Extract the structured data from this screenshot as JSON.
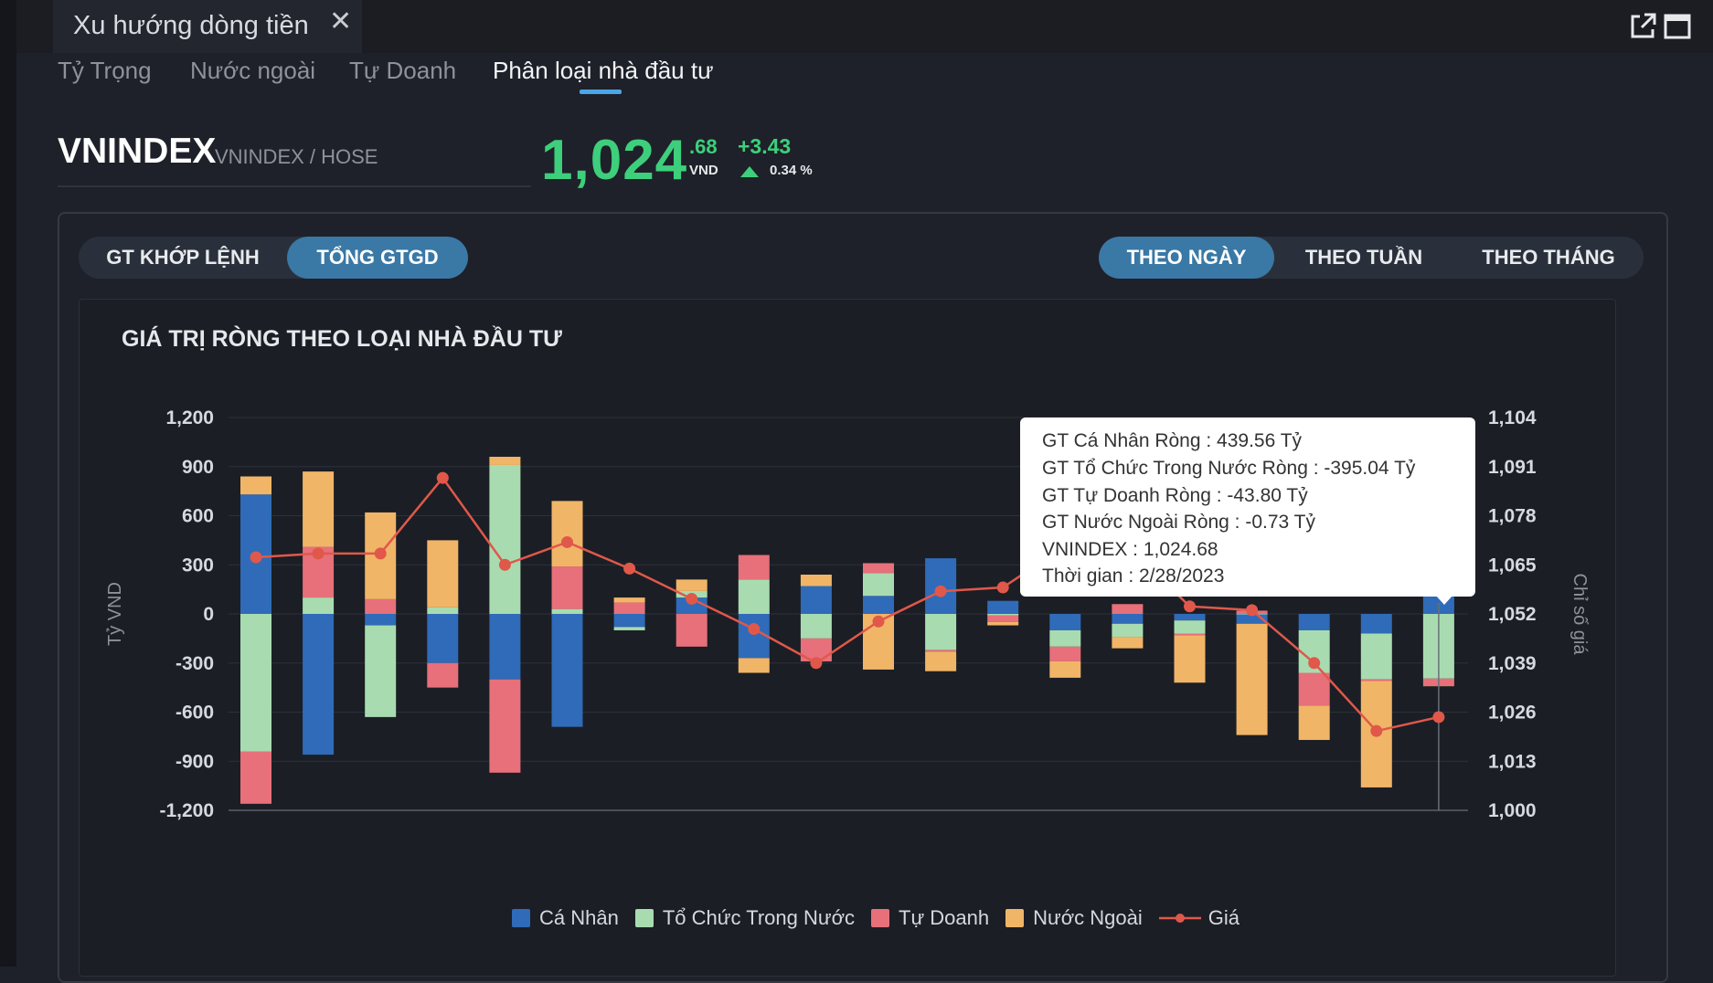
{
  "window": {
    "tab_title": "Xu hướng dòng tiền",
    "close_glyph": "✕",
    "icons": [
      "external-link-icon",
      "maximize-icon"
    ]
  },
  "nav": {
    "tabs": [
      "Tỷ Trọng",
      "Nước ngoài",
      "Tự Doanh",
      "Phân loại nhà đầu tư"
    ],
    "active": "Phân loại nhà đầu tư"
  },
  "symbol": {
    "code": "VNINDEX",
    "exchange": "VNINDEX / HOSE",
    "price_int": "1,024",
    "price_dec": ".68",
    "unit": "VND",
    "change": "+3.43",
    "change_pct": "0.34 %",
    "up_color": "#3ecf7c"
  },
  "filters": {
    "value_type": [
      "GT KHỚP LỆNH",
      "TỔNG GTGD"
    ],
    "value_type_active": "TỔNG GTGD",
    "period": [
      "THEO NGÀY",
      "THEO TUẦN",
      "THEO THÁNG"
    ],
    "period_active": "THEO NGÀY"
  },
  "chart_title": "GIÁ TRỊ RÒNG THEO LOẠI NHÀ ĐẦU TƯ",
  "tooltip": {
    "lines": [
      "GT Cá Nhân Ròng  : 439.56 Tỷ",
      "GT Tổ Chức Trong Nước Ròng : -395.04 Tỷ",
      "GT Tự Doanh Ròng : -43.80 Tỷ",
      "GT Nước Ngoài Ròng : -0.73 Tỷ",
      "VNINDEX : 1,024.68",
      "Thời gian : 2/28/2023"
    ]
  },
  "chart_data": {
    "type": "bar",
    "stacked": true,
    "ylabel": "Tỷ VND",
    "y2label": "Chỉ số giá",
    "ylim": [
      -1200,
      1200
    ],
    "yticks": [
      "1,200",
      "900",
      "600",
      "300",
      "0",
      "-300",
      "-600",
      "-900",
      "-1,200"
    ],
    "y2lim": [
      1000,
      1104
    ],
    "y2ticks": [
      "1,104",
      "1,091",
      "1,078",
      "1,065",
      "1,052",
      "1,039",
      "1,026",
      "1,013",
      "1,000"
    ],
    "grid": true,
    "legend_position": "bottom",
    "colors": {
      "Cá Nhân": "#2f6bb8",
      "Tổ Chức Trong Nước": "#a8dcb0",
      "Tự Doanh": "#e7707a",
      "Nước Ngoài": "#f1b567",
      "Giá": "#e0584a"
    },
    "series": [
      {
        "name": "Cá Nhân",
        "values": [
          730,
          -860,
          -70,
          -300,
          -400,
          -690,
          -80,
          100,
          -270,
          170,
          110,
          340,
          80,
          -100,
          -60,
          -40,
          -60,
          -100,
          -120,
          440
        ]
      },
      {
        "name": "Tổ Chức Trong Nước",
        "values": [
          -840,
          100,
          -560,
          40,
          910,
          30,
          -20,
          40,
          210,
          -150,
          140,
          -220,
          -10,
          -100,
          -80,
          -80,
          0,
          -260,
          -280,
          -395
        ]
      },
      {
        "name": "Tự Doanh",
        "values": [
          -320,
          310,
          90,
          -150,
          -570,
          260,
          70,
          -200,
          150,
          -140,
          60,
          -10,
          -40,
          -90,
          60,
          -10,
          20,
          -200,
          -10,
          -44
        ]
      },
      {
        "name": "Nước Ngoài",
        "values": [
          110,
          460,
          530,
          410,
          50,
          400,
          30,
          70,
          -90,
          70,
          -340,
          -120,
          -20,
          -100,
          -70,
          -290,
          -680,
          -210,
          -650,
          -1
        ]
      },
      {
        "name": "Giá",
        "type": "line",
        "values": [
          1067,
          1068,
          1068,
          1088,
          1065,
          1071,
          1064,
          1056,
          1048,
          1039,
          1050,
          1058,
          1059,
          1070,
          1070,
          1054,
          1053,
          1039,
          1021,
          1024.68
        ]
      }
    ]
  },
  "legend": [
    "Cá Nhân",
    "Tổ Chức Trong Nước",
    "Tự Doanh",
    "Nước Ngoài",
    "Giá"
  ]
}
